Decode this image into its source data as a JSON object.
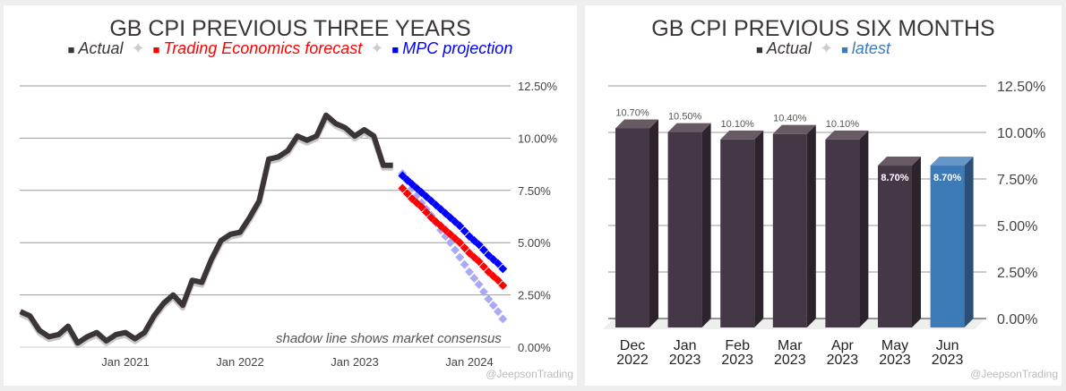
{
  "left": {
    "title": "GB CPI PREVIOUS THREE YEARS",
    "legend": [
      {
        "label": "Actual",
        "color": "#3b3538"
      },
      {
        "label": "Trading Economics forecast",
        "color": "#ff0000"
      },
      {
        "label": "MPC projection",
        "color": "#0000ff"
      }
    ],
    "note": "shadow line shows market consensus",
    "watermark": "@JeepsonTrading"
  },
  "right": {
    "title": "GB CPI PREVIOUS SIX MONTHS",
    "legend": [
      {
        "label": "Actual",
        "color": "#3b3538"
      },
      {
        "label": "latest",
        "color": "#3d7ab8"
      }
    ],
    "watermark": "@JeepsonTrading"
  },
  "chart_data": [
    {
      "type": "line",
      "title": "GB CPI PREVIOUS THREE YEARS",
      "ylim": [
        0,
        12.5
      ],
      "yticks": [
        "12.50%",
        "10.00%",
        "7.50%",
        "5.00%",
        "2.50%",
        "0.00%"
      ],
      "xticks": [
        "Jan 2021",
        "Jan 2022",
        "Jan 2023",
        "Jan 2024"
      ],
      "series": [
        {
          "name": "Actual",
          "start": "2020-02",
          "values": [
            1.7,
            1.5,
            0.8,
            0.5,
            0.6,
            1.0,
            0.2,
            0.5,
            0.7,
            0.3,
            0.6,
            0.7,
            0.4,
            0.7,
            1.5,
            2.1,
            2.5,
            2.0,
            3.2,
            3.1,
            4.2,
            5.1,
            5.4,
            5.5,
            6.2,
            7.0,
            9.0,
            9.1,
            9.4,
            10.1,
            9.9,
            10.1,
            11.1,
            10.7,
            10.5,
            10.1,
            10.4,
            10.1,
            8.7,
            8.7
          ]
        },
        {
          "name": "Trading Economics forecast",
          "start": "2023-06",
          "values": [
            7.6,
            7.1,
            6.7,
            6.2,
            5.8,
            5.4,
            5.0,
            4.5,
            4.1,
            3.6,
            3.2,
            2.7
          ]
        },
        {
          "name": "MPC projection",
          "start": "2023-06",
          "values": [
            8.2,
            7.8,
            7.4,
            7.0,
            6.6,
            6.2,
            5.8,
            5.3,
            4.9,
            4.4,
            4.0,
            3.5
          ]
        },
        {
          "name": "Market consensus",
          "start": "2023-06",
          "values": [
            8.3,
            7.6,
            6.9,
            6.3,
            5.6,
            5.0,
            4.3,
            3.6,
            3.0,
            2.3,
            1.7,
            1.0
          ]
        }
      ]
    },
    {
      "type": "bar",
      "title": "GB CPI PREVIOUS SIX MONTHS",
      "ylim": [
        0,
        12.5
      ],
      "yticks": [
        "12.50%",
        "10.00%",
        "7.50%",
        "5.00%",
        "2.50%",
        "0.00%"
      ],
      "categories": [
        [
          "Dec",
          "2022"
        ],
        [
          "Jan",
          "2023"
        ],
        [
          "Feb",
          "2023"
        ],
        [
          "Mar",
          "2023"
        ],
        [
          "Apr",
          "2023"
        ],
        [
          "May",
          "2023"
        ],
        [
          "Jun",
          "2023"
        ]
      ],
      "values": [
        10.7,
        10.5,
        10.1,
        10.4,
        10.1,
        8.7,
        8.7
      ],
      "labels": [
        "10.70%",
        "10.50%",
        "10.10%",
        "10.40%",
        "10.10%",
        "8.70%",
        "8.70%"
      ],
      "highlight": [
        false,
        false,
        false,
        false,
        false,
        false,
        true
      ]
    }
  ]
}
